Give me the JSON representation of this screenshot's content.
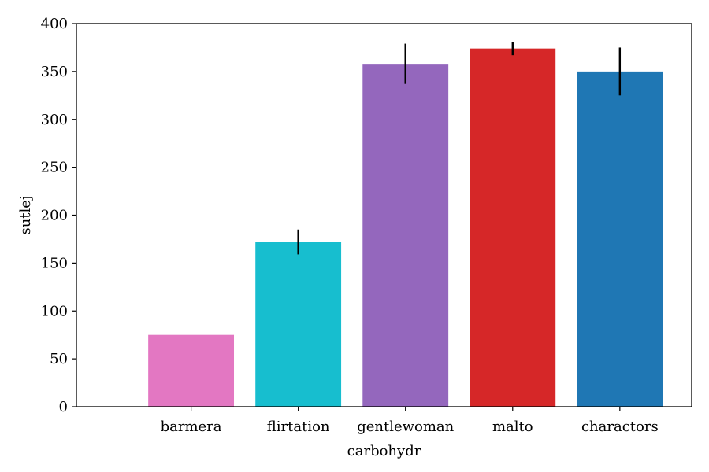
{
  "chart_data": {
    "type": "bar",
    "title": "",
    "xlabel": "carbohydr",
    "ylabel": "sutlej",
    "categories": [
      "barmera",
      "flirtation",
      "gentlewoman",
      "malto",
      "charactors"
    ],
    "values": [
      75,
      172,
      358,
      374,
      350
    ],
    "errors": [
      [
        0,
        0
      ],
      [
        13,
        13
      ],
      [
        21,
        21
      ],
      [
        7,
        7
      ],
      [
        25,
        25
      ]
    ],
    "colors": [
      "#e377c2",
      "#17becf",
      "#9467bd",
      "#d62728",
      "#1f77b4"
    ],
    "ylim": [
      0,
      400
    ],
    "yticks": [
      0,
      50,
      100,
      150,
      200,
      250,
      300,
      350,
      400
    ],
    "grid": false,
    "legend": "none"
  }
}
